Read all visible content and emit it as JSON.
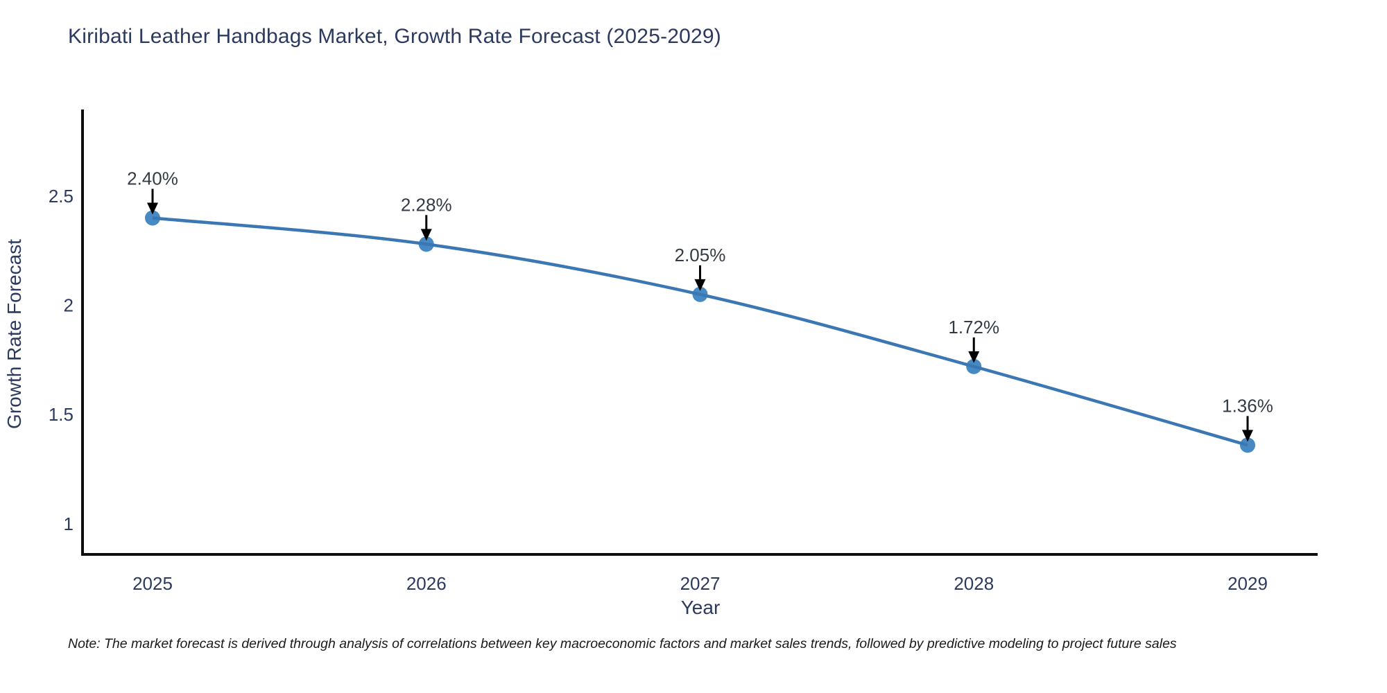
{
  "title": "Kiribati Leather Handbags Market, Growth Rate Forecast (2025-2029)",
  "note": "Note: The market forecast is derived through analysis of correlations between key macroeconomic factors and market sales trends, followed by predictive modeling to project future sales",
  "chart_data": {
    "type": "line",
    "title": "Kiribati Leather Handbags Market, Growth Rate Forecast (2025-2029)",
    "xlabel": "Year",
    "ylabel": "Growth Rate Forecast",
    "categories": [
      "2025",
      "2026",
      "2027",
      "2028",
      "2029"
    ],
    "series": [
      {
        "name": "Growth Rate Forecast",
        "values": [
          2.4,
          2.28,
          2.05,
          1.72,
          1.36
        ]
      }
    ],
    "point_labels": [
      "2.40%",
      "2.28%",
      "2.05%",
      "1.72%",
      "1.36%"
    ],
    "y_ticks": [
      1,
      1.5,
      2,
      2.5
    ],
    "ylim": [
      0.86,
      2.89
    ],
    "grid": false,
    "legend": "none",
    "line_shape": "spline",
    "colors": {
      "line": "#3b77b2",
      "marker": "#4689c3",
      "arrow": "#000000",
      "axis": "#0d0d0d",
      "axis_text": "#2b3a5e",
      "annotation_text": "#333b47"
    }
  }
}
